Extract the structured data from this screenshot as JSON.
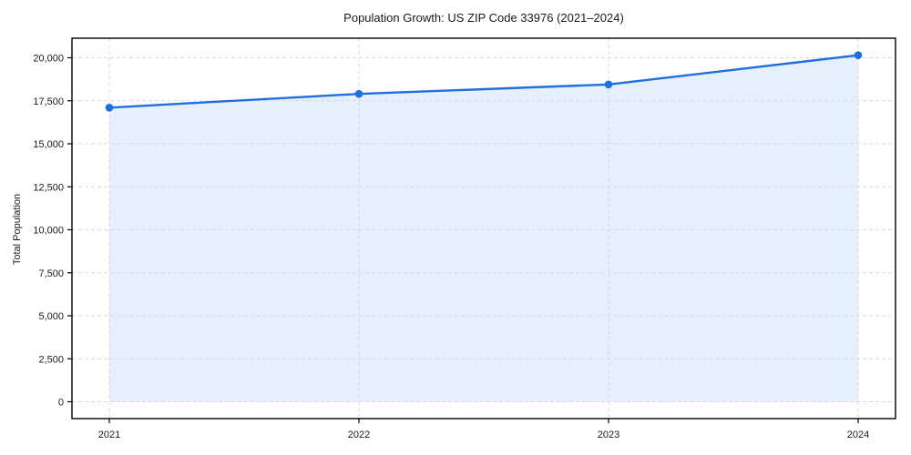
{
  "chart_data": {
    "type": "line",
    "title": "Population Growth: US ZIP Code 33976 (2021–2024)",
    "xlabel": "",
    "ylabel": "Total Population",
    "categories": [
      "2021",
      "2022",
      "2023",
      "2024"
    ],
    "series": [
      {
        "name": "Total Population",
        "values": [
          17100,
          17900,
          18450,
          20150
        ]
      }
    ],
    "yticks": [
      0,
      2500,
      5000,
      7500,
      10000,
      12500,
      15000,
      17500,
      20000
    ],
    "ytick_labels": [
      "0",
      "2,500",
      "5,000",
      "7,500",
      "10,000",
      "12,500",
      "15,000",
      "17,500",
      "20,000"
    ],
    "ylim": [
      0,
      20000
    ],
    "grid": true,
    "grid_style": "dashed",
    "legend_position": "none",
    "area_fill": true,
    "markers": true,
    "colors": {
      "line": "#1f6fe0",
      "fill": "#1f6fe0",
      "fill_opacity": 0.11,
      "grid": "#d9d9d9",
      "spine": "#000000",
      "text": "#1a1a1a"
    }
  }
}
